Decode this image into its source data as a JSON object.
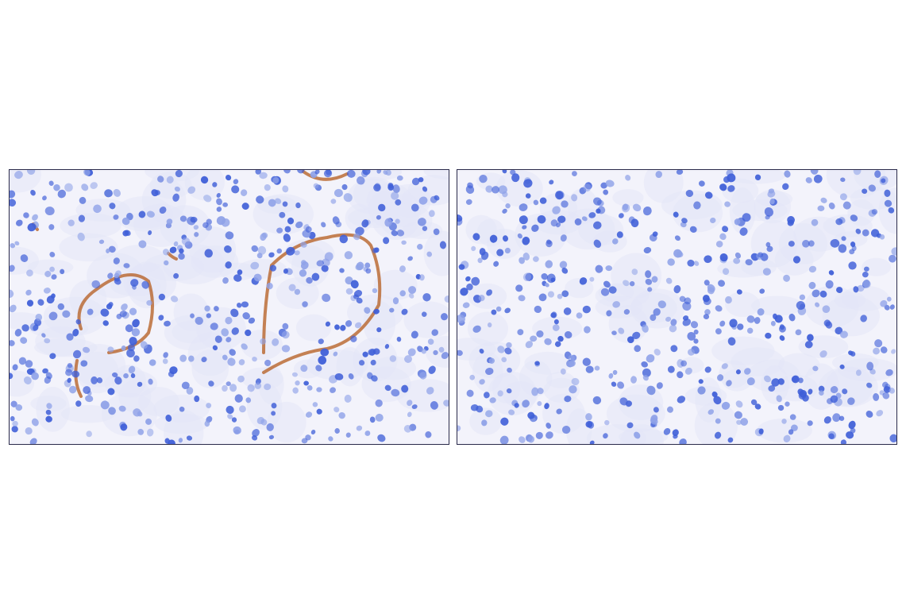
{
  "panels": [
    {
      "id": "left",
      "stain": "positive",
      "colors": {
        "background": "#f3f3fb",
        "nucleus": "#3f5fd8",
        "stain": "#b8642a"
      }
    },
    {
      "id": "right",
      "stain": "negative",
      "colors": {
        "background": "#f3f3fb",
        "nucleus": "#3f5fd8"
      }
    }
  ]
}
